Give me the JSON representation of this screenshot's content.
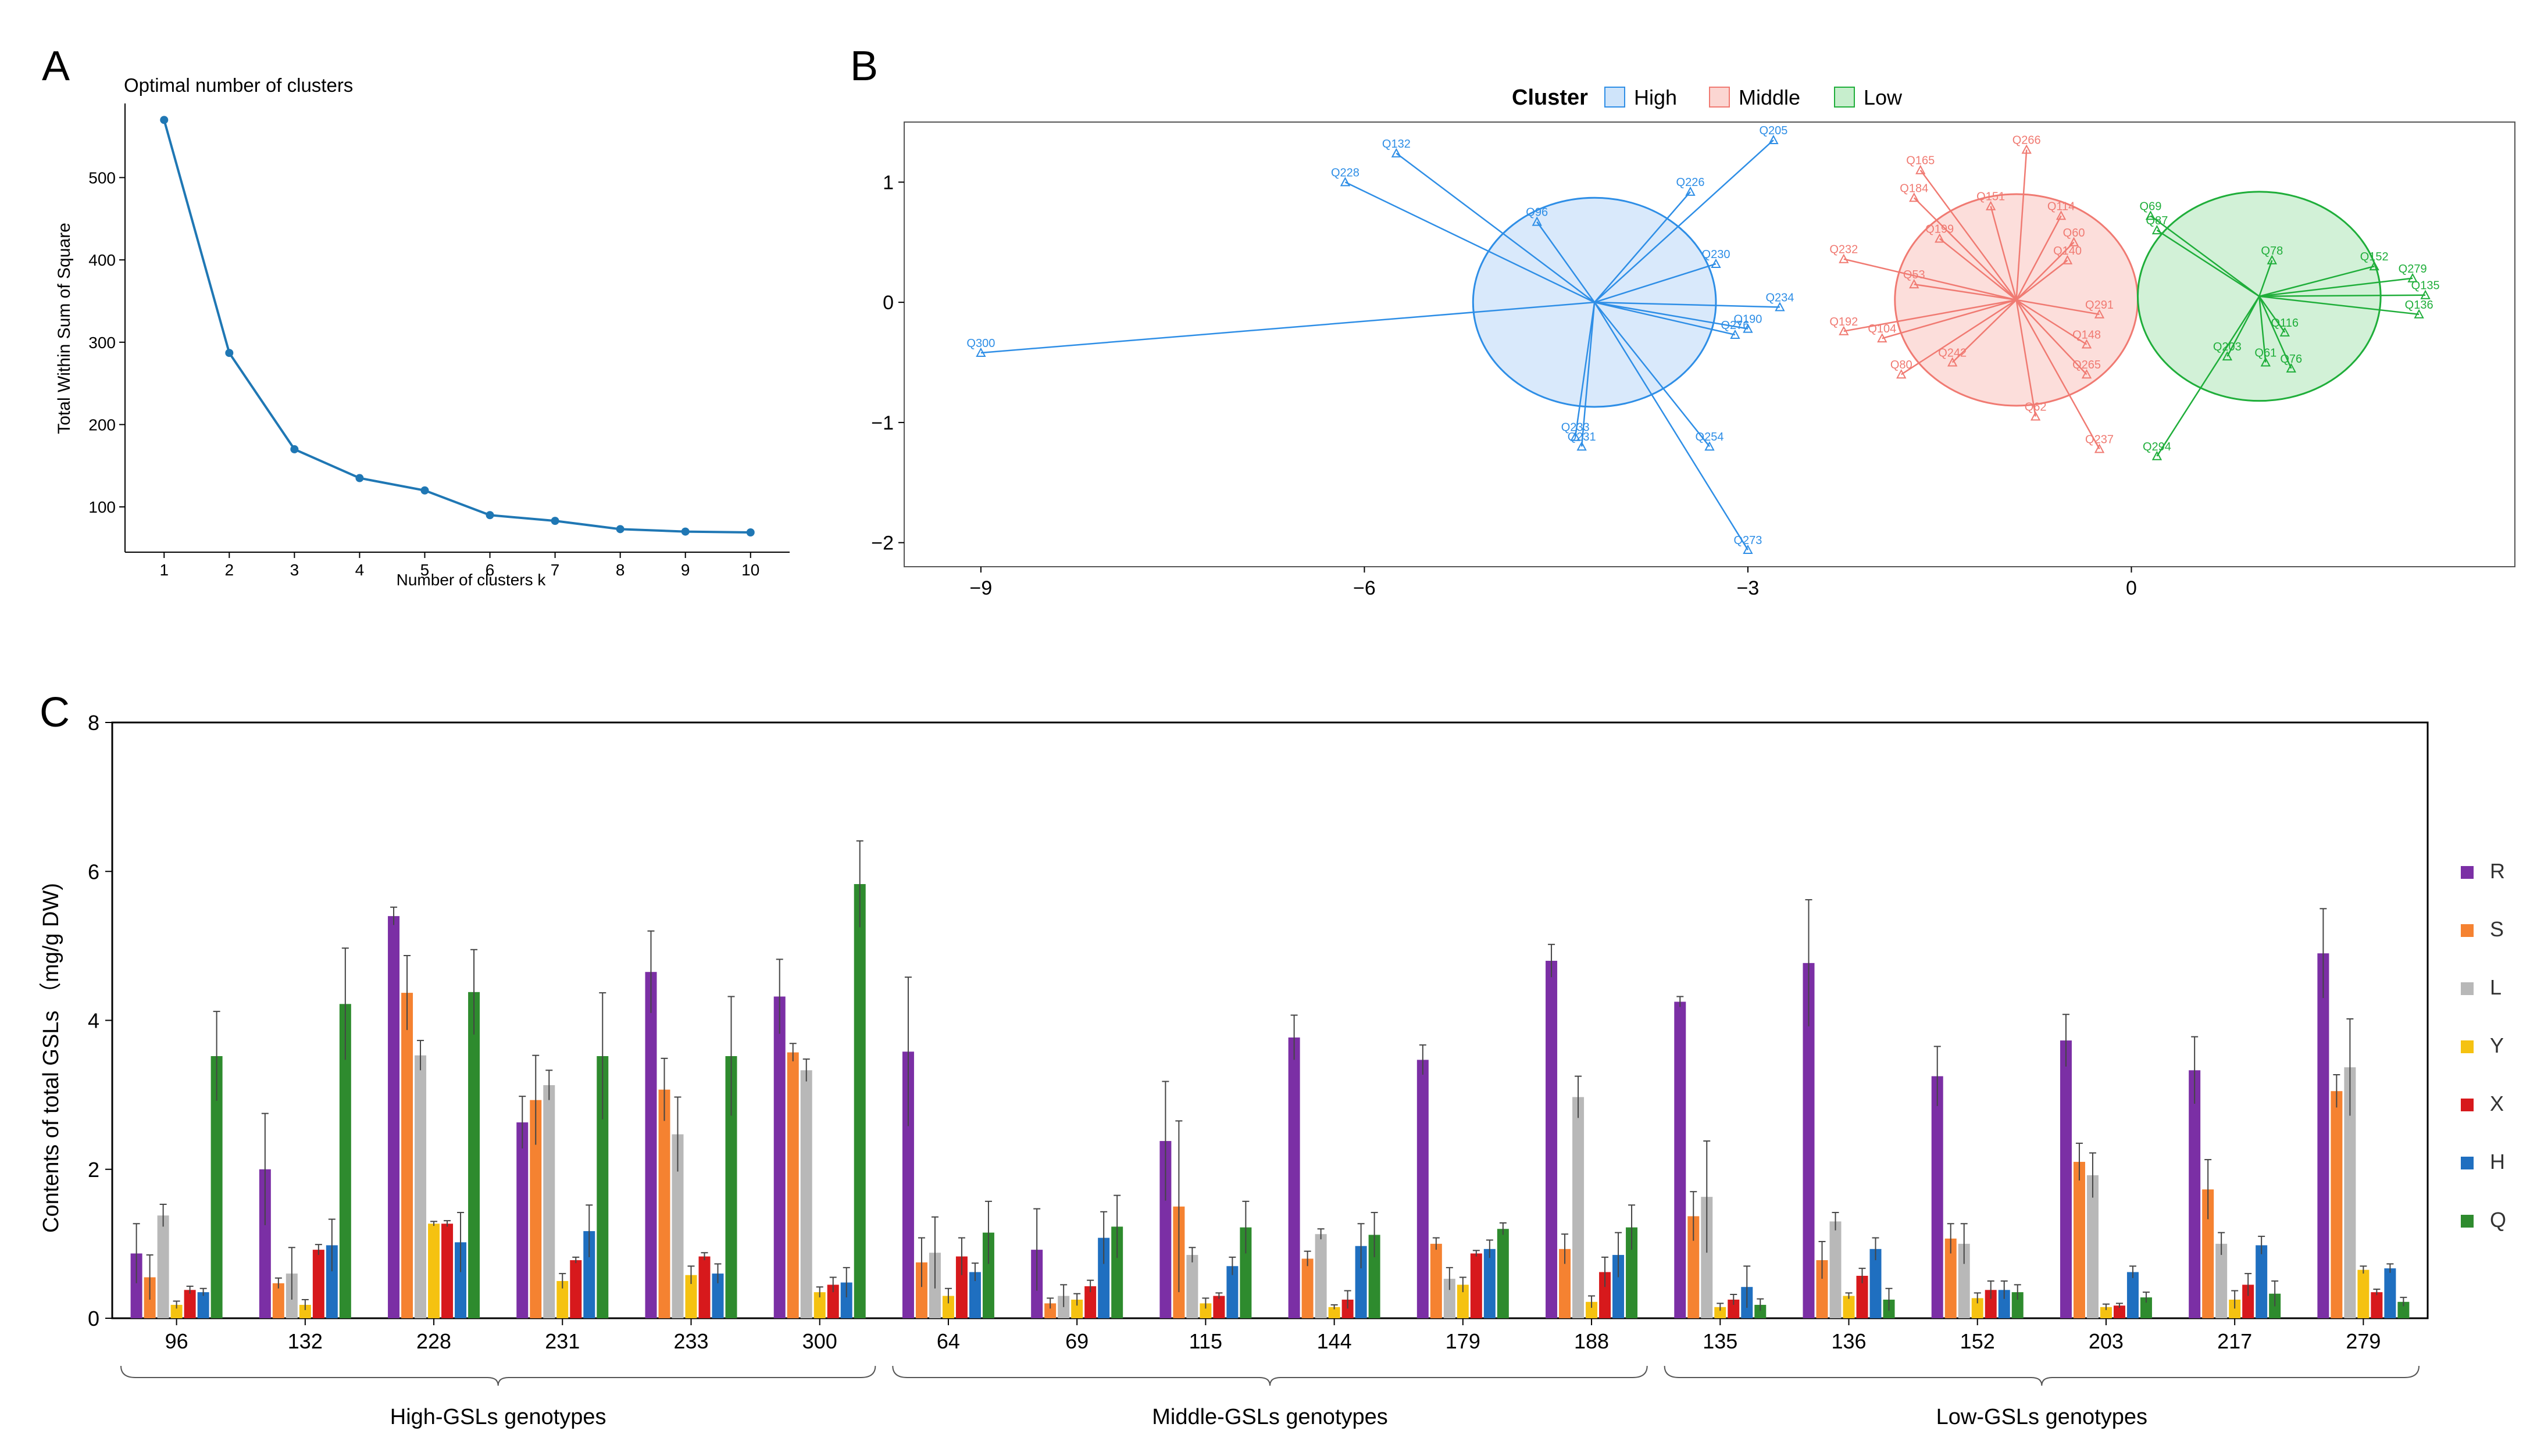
{
  "panel_labels": {
    "a": "A",
    "b": "B",
    "c": "C"
  },
  "colors": {
    "line": "#1f77b4",
    "high": "#2e8ee6",
    "high_fill": "#cfe4fa",
    "middle": "#f07a72",
    "middle_fill": "#fbd6d2",
    "low": "#1fae3a",
    "low_fill": "#c7eecd",
    "R": "#7b2fa5",
    "S": "#f58231",
    "L": "#b8b8b8",
    "Y": "#f5c211",
    "X": "#d7191c",
    "H": "#1f6fc0",
    "Q": "#2e8b2e"
  },
  "chart_data": [
    {
      "type": "line",
      "title": "Optimal number of clusters",
      "xlabel": "Number of clusters k",
      "ylabel": "Total Within Sum of Square",
      "x": [
        1,
        2,
        3,
        4,
        5,
        6,
        7,
        8,
        9,
        10
      ],
      "y": [
        570,
        287,
        170,
        135,
        120,
        90,
        83,
        73,
        70,
        69
      ],
      "xlim": [
        0.4,
        10.6
      ],
      "ylim": [
        45,
        590
      ],
      "xticks": [
        "1",
        "2",
        "3",
        "4",
        "5",
        "6",
        "7",
        "8",
        "9",
        "10"
      ],
      "yticks": [
        100,
        200,
        300,
        400,
        500
      ]
    },
    {
      "type": "scatter",
      "legend_title": "Cluster",
      "legend": [
        "High",
        "Middle",
        "Low"
      ],
      "xlim": [
        -9.6,
        3
      ],
      "ylim": [
        -2.2,
        1.5
      ],
      "xticks": [
        -9,
        -6,
        -3,
        0
      ],
      "yticks": [
        -2,
        -1,
        0,
        1
      ],
      "centers": {
        "High": {
          "x": -4.2,
          "y": 0.0,
          "rx": 0.95,
          "ry": 0.87
        },
        "Middle": {
          "x": -0.9,
          "y": 0.02,
          "rx": 0.95,
          "ry": 0.88
        },
        "Low": {
          "x": 1.0,
          "y": 0.05,
          "rx": 0.95,
          "ry": 0.87
        }
      },
      "points": [
        {
          "label": "Q300",
          "x": -9.0,
          "y": -0.42,
          "cluster": "High"
        },
        {
          "label": "Q228",
          "x": -6.15,
          "y": 1.0,
          "cluster": "High"
        },
        {
          "label": "Q132",
          "x": -5.75,
          "y": 1.24,
          "cluster": "High"
        },
        {
          "label": "Q96",
          "x": -4.65,
          "y": 0.67,
          "cluster": "High"
        },
        {
          "label": "Q205",
          "x": -2.8,
          "y": 1.35,
          "cluster": "High"
        },
        {
          "label": "Q226",
          "x": -3.45,
          "y": 0.92,
          "cluster": "High"
        },
        {
          "label": "Q230",
          "x": -3.25,
          "y": 0.32,
          "cluster": "High"
        },
        {
          "label": "Q234",
          "x": -2.75,
          "y": -0.04,
          "cluster": "High"
        },
        {
          "label": "Q190",
          "x": -3.0,
          "y": -0.22,
          "cluster": "High"
        },
        {
          "label": "Q276",
          "x": -3.1,
          "y": -0.27,
          "cluster": "High"
        },
        {
          "label": "Q233",
          "x": -4.35,
          "y": -1.12,
          "cluster": "High"
        },
        {
          "label": "Q231",
          "x": -4.3,
          "y": -1.2,
          "cluster": "High"
        },
        {
          "label": "Q254",
          "x": -3.3,
          "y": -1.2,
          "cluster": "High"
        },
        {
          "label": "Q273",
          "x": -3.0,
          "y": -2.06,
          "cluster": "High"
        },
        {
          "label": "Q266",
          "x": -0.82,
          "y": 1.27,
          "cluster": "Middle"
        },
        {
          "label": "Q165",
          "x": -1.65,
          "y": 1.1,
          "cluster": "Middle"
        },
        {
          "label": "Q184",
          "x": -1.7,
          "y": 0.87,
          "cluster": "Middle"
        },
        {
          "label": "Q151",
          "x": -1.1,
          "y": 0.8,
          "cluster": "Middle"
        },
        {
          "label": "Q114",
          "x": -0.55,
          "y": 0.72,
          "cluster": "Middle"
        },
        {
          "label": "Q199",
          "x": -1.5,
          "y": 0.53,
          "cluster": "Middle"
        },
        {
          "label": "Q232",
          "x": -2.25,
          "y": 0.36,
          "cluster": "Middle"
        },
        {
          "label": "Q53",
          "x": -1.7,
          "y": 0.15,
          "cluster": "Middle"
        },
        {
          "label": "Q192",
          "x": -2.25,
          "y": -0.24,
          "cluster": "Middle"
        },
        {
          "label": "Q104",
          "x": -1.95,
          "y": -0.3,
          "cluster": "Middle"
        },
        {
          "label": "Q80",
          "x": -1.8,
          "y": -0.6,
          "cluster": "Middle"
        },
        {
          "label": "Q242",
          "x": -1.4,
          "y": -0.5,
          "cluster": "Middle"
        },
        {
          "label": "Q62",
          "x": -0.75,
          "y": -0.95,
          "cluster": "Middle"
        },
        {
          "label": "Q237",
          "x": -0.25,
          "y": -1.22,
          "cluster": "Middle"
        },
        {
          "label": "Q265",
          "x": -0.35,
          "y": -0.6,
          "cluster": "Middle"
        },
        {
          "label": "Q60",
          "x": -0.45,
          "y": 0.5,
          "cluster": "Middle"
        },
        {
          "label": "Q140",
          "x": -0.5,
          "y": 0.35,
          "cluster": "Middle"
        },
        {
          "label": "Q291",
          "x": -0.25,
          "y": -0.1,
          "cluster": "Middle"
        },
        {
          "label": "Q148",
          "x": -0.35,
          "y": -0.35,
          "cluster": "Middle"
        },
        {
          "label": "Q69",
          "x": 0.15,
          "y": 0.72,
          "cluster": "Low"
        },
        {
          "label": "Q87",
          "x": 0.2,
          "y": 0.6,
          "cluster": "Low"
        },
        {
          "label": "Q152",
          "x": 1.9,
          "y": 0.3,
          "cluster": "Low"
        },
        {
          "label": "Q279",
          "x": 2.2,
          "y": 0.2,
          "cluster": "Low"
        },
        {
          "label": "Q135",
          "x": 2.3,
          "y": 0.06,
          "cluster": "Low"
        },
        {
          "label": "Q136",
          "x": 2.25,
          "y": -0.1,
          "cluster": "Low"
        },
        {
          "label": "Q116",
          "x": 1.2,
          "y": -0.25,
          "cluster": "Low"
        },
        {
          "label": "Q76",
          "x": 1.25,
          "y": -0.55,
          "cluster": "Low"
        },
        {
          "label": "Q61",
          "x": 1.05,
          "y": -0.5,
          "cluster": "Low"
        },
        {
          "label": "Q203",
          "x": 0.75,
          "y": -0.45,
          "cluster": "Low"
        },
        {
          "label": "Q294",
          "x": 0.2,
          "y": -1.28,
          "cluster": "Low"
        },
        {
          "label": "Q78",
          "x": 1.1,
          "y": 0.35,
          "cluster": "Low"
        }
      ]
    },
    {
      "type": "bar",
      "ylabel": "Contents of total GSLs （mg/g DW)",
      "ylim": [
        0,
        8
      ],
      "yticks": [
        0,
        2,
        4,
        6,
        8
      ],
      "categories": [
        "96",
        "132",
        "228",
        "231",
        "233",
        "300",
        "64",
        "69",
        "115",
        "144",
        "179",
        "188",
        "135",
        "136",
        "152",
        "203",
        "217",
        "279"
      ],
      "groups": [
        {
          "label": "High-GSLs genotypes",
          "from": 0,
          "to": 5
        },
        {
          "label": "Middle-GSLs genotypes",
          "from": 6,
          "to": 11
        },
        {
          "label": "Low-GSLs genotypes",
          "from": 12,
          "to": 17
        }
      ],
      "series": [
        {
          "name": "R",
          "values": [
            0.87,
            2.0,
            5.4,
            2.63,
            4.65,
            4.32,
            3.58,
            0.92,
            2.38,
            3.77,
            3.47,
            4.8,
            4.25,
            4.77,
            3.25,
            3.73,
            3.33,
            4.9
          ],
          "err": [
            0.4,
            0.75,
            0.12,
            0.35,
            0.55,
            0.5,
            1.0,
            0.55,
            0.8,
            0.3,
            0.2,
            0.22,
            0.07,
            0.85,
            0.4,
            0.35,
            0.45,
            0.6
          ]
        },
        {
          "name": "S",
          "values": [
            0.55,
            0.47,
            4.37,
            2.93,
            3.07,
            3.57,
            0.75,
            0.2,
            1.5,
            0.8,
            1.0,
            0.93,
            1.37,
            0.78,
            1.07,
            2.1,
            1.73,
            3.05
          ],
          "err": [
            0.3,
            0.07,
            0.5,
            0.6,
            0.42,
            0.12,
            0.33,
            0.07,
            1.15,
            0.1,
            0.08,
            0.2,
            0.33,
            0.25,
            0.2,
            0.25,
            0.4,
            0.22
          ]
        },
        {
          "name": "L",
          "values": [
            1.38,
            0.6,
            3.53,
            3.13,
            2.47,
            3.33,
            0.88,
            0.3,
            0.85,
            1.13,
            0.53,
            2.97,
            1.63,
            1.3,
            1.0,
            1.92,
            1.0,
            3.37
          ],
          "err": [
            0.15,
            0.35,
            0.2,
            0.2,
            0.5,
            0.15,
            0.48,
            0.15,
            0.1,
            0.07,
            0.15,
            0.28,
            0.75,
            0.12,
            0.27,
            0.3,
            0.15,
            0.65
          ]
        },
        {
          "name": "Y",
          "values": [
            0.18,
            0.18,
            1.27,
            0.5,
            0.58,
            0.35,
            0.3,
            0.25,
            0.2,
            0.15,
            0.45,
            0.22,
            0.15,
            0.3,
            0.27,
            0.15,
            0.25,
            0.65
          ],
          "err": [
            0.05,
            0.07,
            0.03,
            0.1,
            0.12,
            0.07,
            0.1,
            0.08,
            0.07,
            0.03,
            0.1,
            0.08,
            0.05,
            0.04,
            0.07,
            0.04,
            0.12,
            0.05
          ]
        },
        {
          "name": "X",
          "values": [
            0.38,
            0.92,
            1.27,
            0.78,
            0.83,
            0.45,
            0.83,
            0.43,
            0.3,
            0.25,
            0.87,
            0.62,
            0.25,
            0.57,
            0.38,
            0.17,
            0.45,
            0.35
          ],
          "err": [
            0.05,
            0.07,
            0.04,
            0.04,
            0.05,
            0.1,
            0.25,
            0.08,
            0.04,
            0.12,
            0.04,
            0.2,
            0.07,
            0.1,
            0.12,
            0.03,
            0.15,
            0.04
          ]
        },
        {
          "name": "H",
          "values": [
            0.35,
            0.98,
            1.02,
            1.17,
            0.6,
            0.48,
            0.62,
            1.08,
            0.7,
            0.97,
            0.93,
            0.85,
            0.42,
            0.93,
            0.38,
            0.62,
            0.98,
            0.67
          ],
          "err": [
            0.05,
            0.35,
            0.4,
            0.35,
            0.13,
            0.2,
            0.12,
            0.35,
            0.12,
            0.3,
            0.12,
            0.3,
            0.28,
            0.15,
            0.12,
            0.08,
            0.12,
            0.06
          ]
        },
        {
          "name": "Q",
          "values": [
            3.52,
            4.22,
            4.38,
            3.52,
            3.52,
            5.83,
            1.15,
            1.23,
            1.22,
            1.12,
            1.2,
            1.22,
            0.18,
            0.25,
            0.35,
            0.28,
            0.33,
            0.22
          ],
          "err": [
            0.6,
            0.75,
            0.57,
            0.85,
            0.8,
            0.58,
            0.42,
            0.42,
            0.35,
            0.3,
            0.08,
            0.3,
            0.08,
            0.15,
            0.1,
            0.07,
            0.17,
            0.06
          ]
        }
      ]
    }
  ]
}
